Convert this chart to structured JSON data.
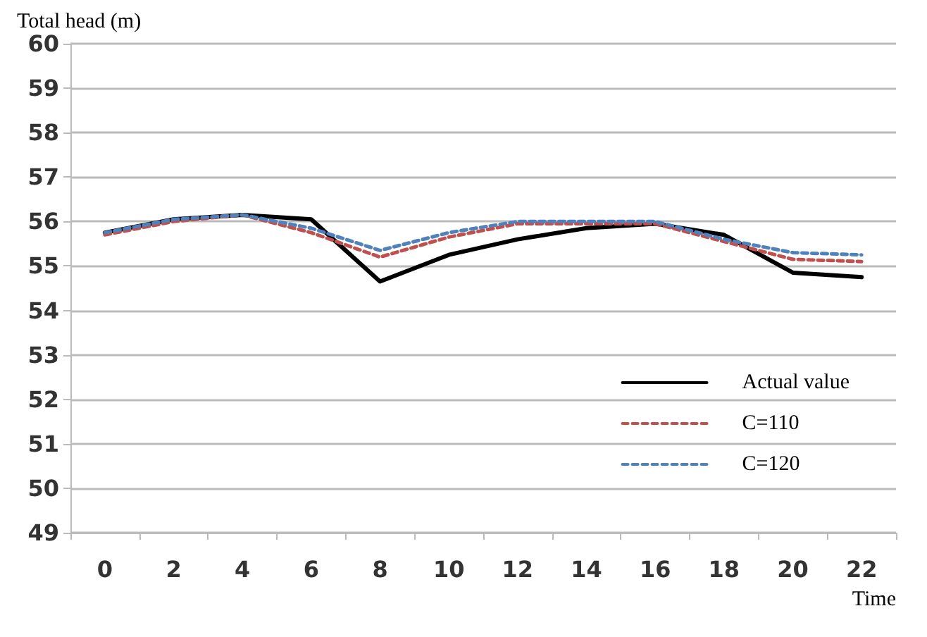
{
  "chart_data": {
    "type": "line",
    "xlabel": "Time",
    "ylabel": "Total head (m)",
    "categories": [
      "0",
      "2",
      "4",
      "6",
      "8",
      "10",
      "12",
      "14",
      "16",
      "18",
      "20",
      "22"
    ],
    "series": [
      {
        "name": "Actual value",
        "color": "#000000",
        "line_style": "solid",
        "values": [
          55.75,
          56.05,
          56.15,
          56.05,
          54.65,
          55.25,
          55.6,
          55.85,
          55.95,
          55.7,
          54.85,
          54.75
        ]
      },
      {
        "name": "C=110",
        "color": "#c0504d",
        "line_style": "dashed",
        "values": [
          55.7,
          56.0,
          56.15,
          55.75,
          55.2,
          55.65,
          55.95,
          55.95,
          55.95,
          55.55,
          55.15,
          55.1
        ]
      },
      {
        "name": "C=120",
        "color": "#4f81bd",
        "line_style": "dashed",
        "values": [
          55.75,
          56.05,
          56.15,
          55.85,
          55.35,
          55.75,
          56.0,
          56.0,
          56.0,
          55.6,
          55.3,
          55.25
        ]
      }
    ],
    "ylim": [
      49,
      60
    ],
    "yticks": [
      49,
      50,
      51,
      52,
      53,
      54,
      55,
      56,
      57,
      58,
      59,
      60
    ],
    "grid": "y",
    "legend": "bottom right",
    "marker": "none"
  }
}
